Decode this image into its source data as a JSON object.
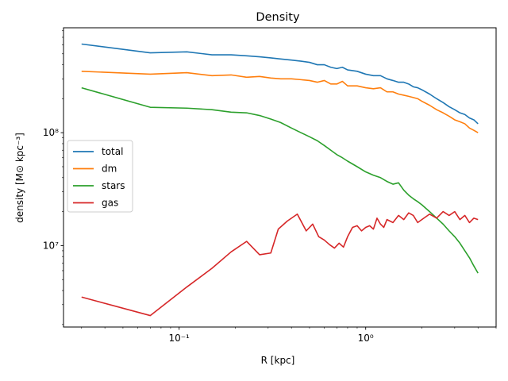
{
  "chart_data": {
    "type": "line",
    "title": "Density",
    "xlabel": "R [kpc]",
    "ylabel": "density [M⊙ kpc⁻³]",
    "xscale": "log",
    "yscale": "log",
    "xlim": [
      0.024,
      5.0
    ],
    "ylim": [
      1900000.0,
      850000000.0
    ],
    "grid": false,
    "legend": "center-left",
    "x_ticks": [
      {
        "value": 0.1,
        "label": "10⁻¹"
      },
      {
        "value": 1.0,
        "label": "10⁰"
      }
    ],
    "y_ticks": [
      {
        "value": 10000000.0,
        "label": "10⁷"
      },
      {
        "value": 100000000.0,
        "label": "10⁸"
      }
    ],
    "series": [
      {
        "name": "total",
        "color": "#1f77b4",
        "x": [
          0.03,
          0.07,
          0.11,
          0.15,
          0.19,
          0.23,
          0.27,
          0.31,
          0.35,
          0.4,
          0.45,
          0.5,
          0.55,
          0.6,
          0.65,
          0.7,
          0.75,
          0.8,
          0.9,
          1.0,
          1.1,
          1.2,
          1.3,
          1.4,
          1.5,
          1.6,
          1.7,
          1.8,
          1.9,
          2.0,
          2.2,
          2.4,
          2.6,
          2.8,
          3.0,
          3.2,
          3.4,
          3.6,
          3.8,
          4.0
        ],
        "y": [
          610000000.0,
          510000000.0,
          520000000.0,
          490000000.0,
          490000000.0,
          480000000.0,
          470000000.0,
          460000000.0,
          450000000.0,
          440000000.0,
          430000000.0,
          420000000.0,
          400000000.0,
          400000000.0,
          380000000.0,
          370000000.0,
          380000000.0,
          360000000.0,
          350000000.0,
          330000000.0,
          320000000.0,
          320000000.0,
          300000000.0,
          290000000.0,
          280000000.0,
          280000000.0,
          270000000.0,
          255000000.0,
          250000000.0,
          240000000.0,
          220000000.0,
          200000000.0,
          185000000.0,
          170000000.0,
          160000000.0,
          150000000.0,
          145000000.0,
          135000000.0,
          130000000.0,
          120000000.0
        ]
      },
      {
        "name": "dm",
        "color": "#ff7f0e",
        "x": [
          0.03,
          0.07,
          0.11,
          0.15,
          0.19,
          0.23,
          0.27,
          0.31,
          0.35,
          0.4,
          0.45,
          0.5,
          0.55,
          0.6,
          0.65,
          0.7,
          0.75,
          0.8,
          0.9,
          1.0,
          1.1,
          1.2,
          1.3,
          1.4,
          1.5,
          1.6,
          1.7,
          1.8,
          1.9,
          2.0,
          2.2,
          2.4,
          2.6,
          2.8,
          3.0,
          3.2,
          3.4,
          3.6,
          3.8,
          4.0
        ],
        "y": [
          350000000.0,
          330000000.0,
          340000000.0,
          320000000.0,
          325000000.0,
          310000000.0,
          315000000.0,
          305000000.0,
          300000000.0,
          300000000.0,
          295000000.0,
          290000000.0,
          280000000.0,
          290000000.0,
          270000000.0,
          270000000.0,
          285000000.0,
          260000000.0,
          260000000.0,
          250000000.0,
          245000000.0,
          250000000.0,
          230000000.0,
          230000000.0,
          220000000.0,
          215000000.0,
          210000000.0,
          205000000.0,
          200000000.0,
          190000000.0,
          175000000.0,
          160000000.0,
          150000000.0,
          140000000.0,
          130000000.0,
          125000000.0,
          120000000.0,
          110000000.0,
          105000000.0,
          100000000.0
        ]
      },
      {
        "name": "stars",
        "color": "#2ca02c",
        "x": [
          0.03,
          0.07,
          0.11,
          0.15,
          0.19,
          0.23,
          0.27,
          0.31,
          0.35,
          0.4,
          0.45,
          0.5,
          0.55,
          0.6,
          0.65,
          0.7,
          0.75,
          0.8,
          0.9,
          1.0,
          1.1,
          1.2,
          1.3,
          1.4,
          1.5,
          1.6,
          1.7,
          1.8,
          1.9,
          2.0,
          2.2,
          2.4,
          2.6,
          2.8,
          3.0,
          3.2,
          3.4,
          3.6,
          3.8,
          4.0
        ],
        "y": [
          250000000.0,
          168000000.0,
          165000000.0,
          160000000.0,
          152000000.0,
          150000000.0,
          142000000.0,
          132000000.0,
          123000000.0,
          110000000.0,
          100000000.0,
          92000000.0,
          85000000.0,
          77000000.0,
          70000000.0,
          64000000.0,
          60000000.0,
          56000000.0,
          50000000.0,
          45000000.0,
          42000000.0,
          40000000.0,
          37000000.0,
          35000000.0,
          36000000.0,
          31000000.0,
          28000000.0,
          26000000.0,
          24500000.0,
          23000000.0,
          20000000.0,
          17500000.0,
          15500000.0,
          13500000.0,
          12000000.0,
          10500000.0,
          9000000.0,
          7800000.0,
          6600000.0,
          5700000.0
        ]
      },
      {
        "name": "gas",
        "color": "#d62728",
        "x": [
          0.03,
          0.07,
          0.11,
          0.15,
          0.19,
          0.23,
          0.27,
          0.31,
          0.34,
          0.38,
          0.43,
          0.48,
          0.52,
          0.56,
          0.6,
          0.64,
          0.68,
          0.72,
          0.76,
          0.8,
          0.85,
          0.9,
          0.95,
          1.0,
          1.05,
          1.1,
          1.15,
          1.2,
          1.25,
          1.3,
          1.4,
          1.5,
          1.6,
          1.7,
          1.8,
          1.9,
          2.0,
          2.2,
          2.4,
          2.6,
          2.8,
          3.0,
          3.2,
          3.4,
          3.6,
          3.8,
          4.0
        ],
        "y": [
          3500000.0,
          2400000.0,
          4300000.0,
          6300000.0,
          8800000.0,
          10900000.0,
          8300000.0,
          8600000.0,
          14000000.0,
          16500000.0,
          19000000.0,
          13500000.0,
          15500000.0,
          12000000.0,
          11200000.0,
          10200000.0,
          9500000.0,
          10500000.0,
          9700000.0,
          12000000.0,
          14500000.0,
          15000000.0,
          13500000.0,
          14500000.0,
          15000000.0,
          14000000.0,
          17500000.0,
          15500000.0,
          14500000.0,
          17000000.0,
          16000000.0,
          18500000.0,
          17000000.0,
          19500000.0,
          18500000.0,
          16000000.0,
          17000000.0,
          19000000.0,
          17500000.0,
          20000000.0,
          18500000.0,
          20000000.0,
          17000000.0,
          18500000.0,
          16000000.0,
          17500000.0,
          17000000.0
        ]
      }
    ]
  }
}
